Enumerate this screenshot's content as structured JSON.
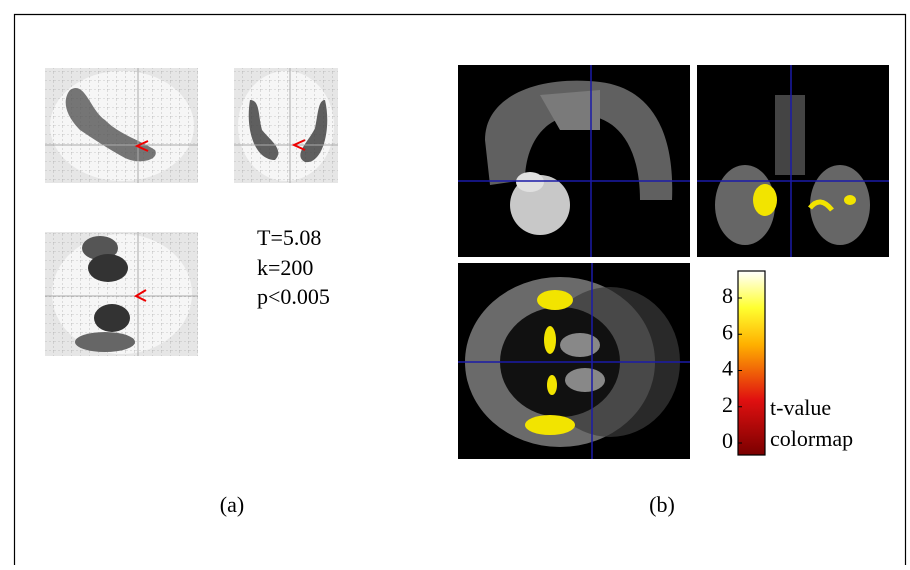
{
  "panel_a": {
    "stats": [
      "T=5.08",
      "k=200",
      "p<0.005"
    ],
    "caption": "(a)"
  },
  "panel_b": {
    "colorbar": {
      "ticks": [
        0,
        2,
        4,
        6,
        8
      ],
      "label": [
        "t-value",
        "colormap"
      ]
    },
    "caption": "(b)"
  }
}
